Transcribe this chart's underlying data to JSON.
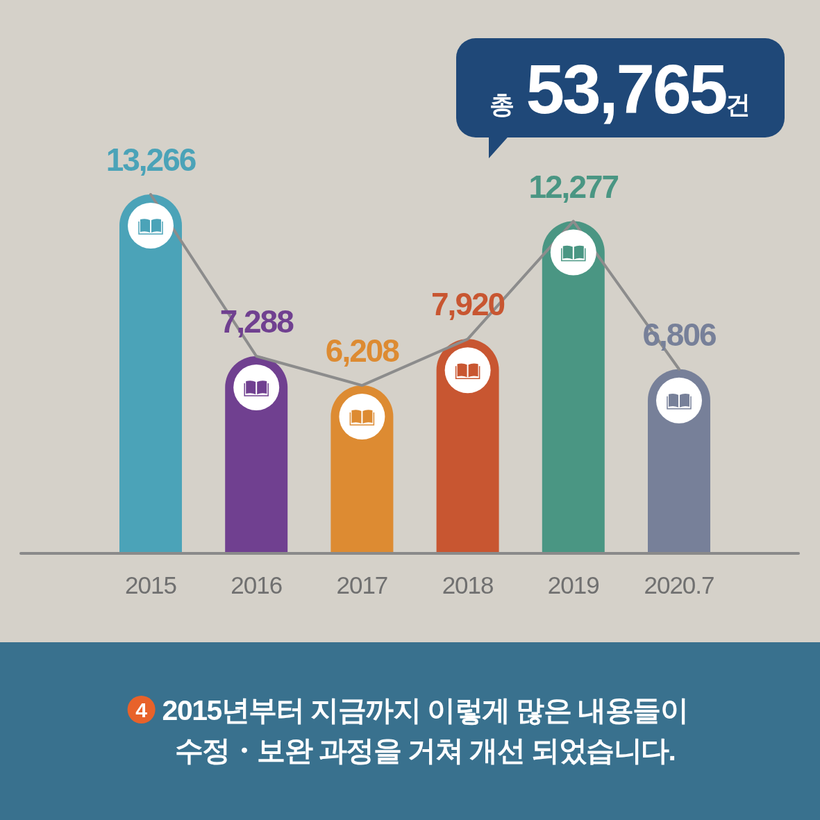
{
  "chart_data": {
    "type": "bar",
    "title": "총 53,765건",
    "categories": [
      "2015",
      "2016",
      "2017",
      "2018",
      "2019",
      "2020.7"
    ],
    "series": [
      {
        "type": "bar",
        "colors": [
          "#4ba3b8",
          "#704090",
          "#dd8b32",
          "#c85631",
          "#4a9683",
          "#778099"
        ],
        "values": [
          13266,
          7288,
          6208,
          7920,
          12277,
          6806
        ],
        "value_labels": [
          "13,266",
          "7,288",
          "6,208",
          "7,920",
          "12,277",
          "6,806"
        ]
      },
      {
        "type": "line",
        "color": "#8c8c8c",
        "values": [
          13266,
          7288,
          6208,
          7920,
          12277,
          6806
        ]
      }
    ],
    "annotations": [
      "4",
      "2015년부터 지금까지 이렇게 많은 내용들이\n수정・보완 과정을 거쳐 개선 되었습니다."
    ]
  }
}
